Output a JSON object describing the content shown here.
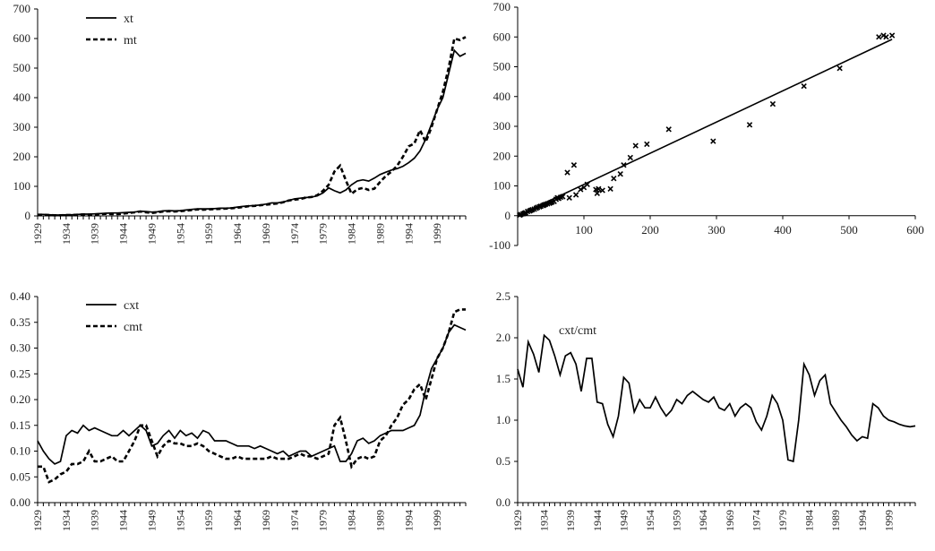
{
  "chart_data": [
    {
      "id": "levels",
      "type": "line",
      "ylim": [
        0,
        700
      ],
      "yticks": [
        0,
        100,
        200,
        300,
        400,
        500,
        600,
        700
      ],
      "xticks": [
        1929,
        1934,
        1939,
        1944,
        1949,
        1954,
        1959,
        1964,
        1969,
        1974,
        1979,
        1984,
        1989,
        1994,
        1999
      ],
      "xrange": [
        1929,
        2004
      ],
      "legend": "top-left",
      "x": [
        1929,
        1930,
        1931,
        1932,
        1933,
        1934,
        1935,
        1936,
        1937,
        1938,
        1939,
        1940,
        1941,
        1942,
        1943,
        1944,
        1945,
        1946,
        1947,
        1948,
        1949,
        1950,
        1951,
        1952,
        1953,
        1954,
        1955,
        1956,
        1957,
        1958,
        1959,
        1960,
        1961,
        1962,
        1963,
        1964,
        1965,
        1966,
        1967,
        1968,
        1969,
        1970,
        1971,
        1972,
        1973,
        1974,
        1975,
        1976,
        1977,
        1978,
        1979,
        1980,
        1981,
        1982,
        1983,
        1984,
        1985,
        1986,
        1987,
        1988,
        1989,
        1990,
        1991,
        1992,
        1993,
        1994,
        1995,
        1996,
        1997,
        1998,
        1999,
        2000,
        2001,
        2002,
        2003,
        2004
      ],
      "series": [
        {
          "name": "xt",
          "style": "solid",
          "values": [
            5,
            5,
            4,
            3,
            3,
            4,
            4,
            5,
            6,
            6,
            7,
            8,
            9,
            10,
            10,
            11,
            12,
            13,
            16,
            15,
            13,
            14,
            17,
            18,
            17,
            18,
            20,
            22,
            24,
            24,
            24,
            25,
            26,
            26,
            27,
            30,
            32,
            34,
            35,
            37,
            40,
            44,
            44,
            47,
            52,
            58,
            60,
            62,
            64,
            68,
            78,
            95,
            85,
            78,
            88,
            105,
            118,
            122,
            118,
            128,
            140,
            148,
            155,
            160,
            168,
            180,
            195,
            220,
            260,
            310,
            360,
            400,
            480,
            560,
            540,
            550
          ]
        },
        {
          "name": "mt",
          "style": "dashed",
          "values": [
            4,
            4,
            3,
            2,
            2,
            3,
            3,
            4,
            5,
            4,
            5,
            6,
            7,
            6,
            6,
            8,
            10,
            12,
            15,
            12,
            10,
            12,
            15,
            16,
            15,
            16,
            18,
            20,
            22,
            21,
            22,
            23,
            24,
            25,
            26,
            28,
            30,
            33,
            34,
            36,
            38,
            40,
            42,
            46,
            52,
            55,
            57,
            62,
            64,
            70,
            85,
            105,
            150,
            170,
            120,
            75,
            90,
            95,
            88,
            92,
            115,
            135,
            150,
            170,
            200,
            235,
            245,
            290,
            250,
            300,
            360,
            420,
            500,
            600,
            595,
            605
          ]
        }
      ]
    },
    {
      "id": "scatter",
      "type": "scatter",
      "xlim": [
        0,
        600
      ],
      "ylim": [
        -100,
        700
      ],
      "xticks": [
        100,
        200,
        300,
        400,
        500,
        600
      ],
      "yticks": [
        -100,
        0,
        100,
        200,
        300,
        400,
        500,
        600,
        700
      ],
      "points": [
        [
          3,
          2
        ],
        [
          5,
          4
        ],
        [
          8,
          6
        ],
        [
          10,
          8
        ],
        [
          12,
          10
        ],
        [
          15,
          14
        ],
        [
          18,
          16
        ],
        [
          20,
          18
        ],
        [
          22,
          20
        ],
        [
          25,
          22
        ],
        [
          28,
          25
        ],
        [
          30,
          28
        ],
        [
          33,
          30
        ],
        [
          35,
          32
        ],
        [
          38,
          34
        ],
        [
          40,
          36
        ],
        [
          42,
          38
        ],
        [
          45,
          40
        ],
        [
          48,
          42
        ],
        [
          50,
          44
        ],
        [
          52,
          46
        ],
        [
          55,
          48
        ],
        [
          58,
          55
        ],
        [
          60,
          60
        ],
        [
          62,
          58
        ],
        [
          65,
          62
        ],
        [
          68,
          64
        ],
        [
          75,
          145
        ],
        [
          78,
          60
        ],
        [
          85,
          170
        ],
        [
          88,
          70
        ],
        [
          95,
          88
        ],
        [
          100,
          95
        ],
        [
          105,
          105
        ],
        [
          118,
          88
        ],
        [
          120,
          75
        ],
        [
          122,
          90
        ],
        [
          128,
          85
        ],
        [
          140,
          90
        ],
        [
          145,
          125
        ],
        [
          155,
          140
        ],
        [
          160,
          170
        ],
        [
          170,
          195
        ],
        [
          178,
          235
        ],
        [
          195,
          240
        ],
        [
          228,
          290
        ],
        [
          295,
          250
        ],
        [
          350,
          305
        ],
        [
          385,
          375
        ],
        [
          432,
          435
        ],
        [
          486,
          495
        ],
        [
          545,
          600
        ],
        [
          552,
          605
        ],
        [
          556,
          600
        ],
        [
          565,
          605
        ]
      ],
      "trend": [
        [
          0,
          0
        ],
        [
          565,
          592
        ]
      ]
    },
    {
      "id": "ratios",
      "type": "line",
      "ylim": [
        0,
        0.4
      ],
      "yticks": [
        "0.00",
        "0.05",
        "0.10",
        "0.15",
        "0.20",
        "0.25",
        "0.30",
        "0.35",
        "0.40"
      ],
      "xticks": [
        1929,
        1934,
        1939,
        1944,
        1949,
        1954,
        1959,
        1964,
        1969,
        1974,
        1979,
        1984,
        1989,
        1994,
        1999
      ],
      "xrange": [
        1929,
        2004
      ],
      "legend": "top-left",
      "x": [
        1929,
        1930,
        1931,
        1932,
        1933,
        1934,
        1935,
        1936,
        1937,
        1938,
        1939,
        1940,
        1941,
        1942,
        1943,
        1944,
        1945,
        1946,
        1947,
        1948,
        1949,
        1950,
        1951,
        1952,
        1953,
        1954,
        1955,
        1956,
        1957,
        1958,
        1959,
        1960,
        1961,
        1962,
        1963,
        1964,
        1965,
        1966,
        1967,
        1968,
        1969,
        1970,
        1971,
        1972,
        1973,
        1974,
        1975,
        1976,
        1977,
        1978,
        1979,
        1980,
        1981,
        1982,
        1983,
        1984,
        1985,
        1986,
        1987,
        1988,
        1989,
        1990,
        1991,
        1992,
        1993,
        1994,
        1995,
        1996,
        1997,
        1998,
        1999,
        2000,
        2001,
        2002,
        2003,
        2004
      ],
      "series": [
        {
          "name": "cxt",
          "style": "solid",
          "values": [
            0.12,
            0.1,
            0.085,
            0.075,
            0.08,
            0.13,
            0.14,
            0.135,
            0.15,
            0.14,
            0.145,
            0.14,
            0.135,
            0.13,
            0.13,
            0.14,
            0.13,
            0.14,
            0.15,
            0.14,
            0.11,
            0.115,
            0.13,
            0.14,
            0.125,
            0.14,
            0.13,
            0.135,
            0.125,
            0.14,
            0.135,
            0.12,
            0.12,
            0.12,
            0.115,
            0.11,
            0.11,
            0.11,
            0.105,
            0.11,
            0.105,
            0.1,
            0.095,
            0.1,
            0.09,
            0.095,
            0.1,
            0.1,
            0.09,
            0.095,
            0.1,
            0.105,
            0.11,
            0.08,
            0.08,
            0.095,
            0.12,
            0.125,
            0.115,
            0.12,
            0.13,
            0.135,
            0.14,
            0.14,
            0.14,
            0.145,
            0.15,
            0.17,
            0.22,
            0.26,
            0.28,
            0.3,
            0.33,
            0.345,
            0.34,
            0.335
          ]
        },
        {
          "name": "cmt",
          "style": "dashed",
          "values": [
            0.07,
            0.07,
            0.04,
            0.045,
            0.055,
            0.06,
            0.075,
            0.075,
            0.08,
            0.1,
            0.08,
            0.08,
            0.085,
            0.09,
            0.08,
            0.08,
            0.1,
            0.12,
            0.15,
            0.15,
            0.12,
            0.09,
            0.11,
            0.12,
            0.115,
            0.115,
            0.11,
            0.11,
            0.115,
            0.11,
            0.1,
            0.095,
            0.09,
            0.085,
            0.085,
            0.09,
            0.085,
            0.085,
            0.085,
            0.085,
            0.085,
            0.09,
            0.085,
            0.085,
            0.085,
            0.09,
            0.095,
            0.09,
            0.09,
            0.085,
            0.09,
            0.095,
            0.15,
            0.165,
            0.12,
            0.07,
            0.085,
            0.09,
            0.085,
            0.09,
            0.12,
            0.13,
            0.15,
            0.165,
            0.19,
            0.2,
            0.22,
            0.23,
            0.2,
            0.24,
            0.28,
            0.3,
            0.33,
            0.37,
            0.375,
            0.375
          ]
        }
      ]
    },
    {
      "id": "ratio-of-ratios",
      "type": "line",
      "ylim": [
        0,
        2.5
      ],
      "yticks": [
        "0.0",
        "0.5",
        "1.0",
        "1.5",
        "2.0",
        "2.5"
      ],
      "xticks": [
        1929,
        1934,
        1939,
        1944,
        1949,
        1954,
        1959,
        1964,
        1969,
        1974,
        1979,
        1984,
        1989,
        1994,
        1999
      ],
      "xrange": [
        1929,
        2004
      ],
      "annotation": "cxt/cmt",
      "x": [
        1929,
        1930,
        1931,
        1932,
        1933,
        1934,
        1935,
        1936,
        1937,
        1938,
        1939,
        1940,
        1941,
        1942,
        1943,
        1944,
        1945,
        1946,
        1947,
        1948,
        1949,
        1950,
        1951,
        1952,
        1953,
        1954,
        1955,
        1956,
        1957,
        1958,
        1959,
        1960,
        1961,
        1962,
        1963,
        1964,
        1965,
        1966,
        1967,
        1968,
        1969,
        1970,
        1971,
        1972,
        1973,
        1974,
        1975,
        1976,
        1977,
        1978,
        1979,
        1980,
        1981,
        1982,
        1983,
        1984,
        1985,
        1986,
        1987,
        1988,
        1989,
        1990,
        1991,
        1992,
        1993,
        1994,
        1995,
        1996,
        1997,
        1998,
        1999,
        2000,
        2001,
        2002,
        2003,
        2004
      ],
      "series": [
        {
          "name": "cxt/cmt",
          "style": "solid",
          "values": [
            1.62,
            1.4,
            1.95,
            1.8,
            1.58,
            2.03,
            1.97,
            1.78,
            1.55,
            1.78,
            1.82,
            1.68,
            1.35,
            1.75,
            1.75,
            1.22,
            1.2,
            0.95,
            0.8,
            1.05,
            1.52,
            1.45,
            1.1,
            1.25,
            1.15,
            1.15,
            1.28,
            1.15,
            1.05,
            1.12,
            1.25,
            1.2,
            1.3,
            1.35,
            1.3,
            1.25,
            1.22,
            1.28,
            1.15,
            1.12,
            1.2,
            1.05,
            1.15,
            1.2,
            1.15,
            0.98,
            0.88,
            1.05,
            1.3,
            1.2,
            1.0,
            0.52,
            0.5,
            1.0,
            1.68,
            1.55,
            1.3,
            1.48,
            1.55,
            1.2,
            1.1,
            1.0,
            0.92,
            0.82,
            0.75,
            0.8,
            0.78,
            1.2,
            1.15,
            1.05,
            1.0,
            0.98,
            0.95,
            0.93,
            0.92,
            0.93
          ]
        }
      ]
    }
  ]
}
